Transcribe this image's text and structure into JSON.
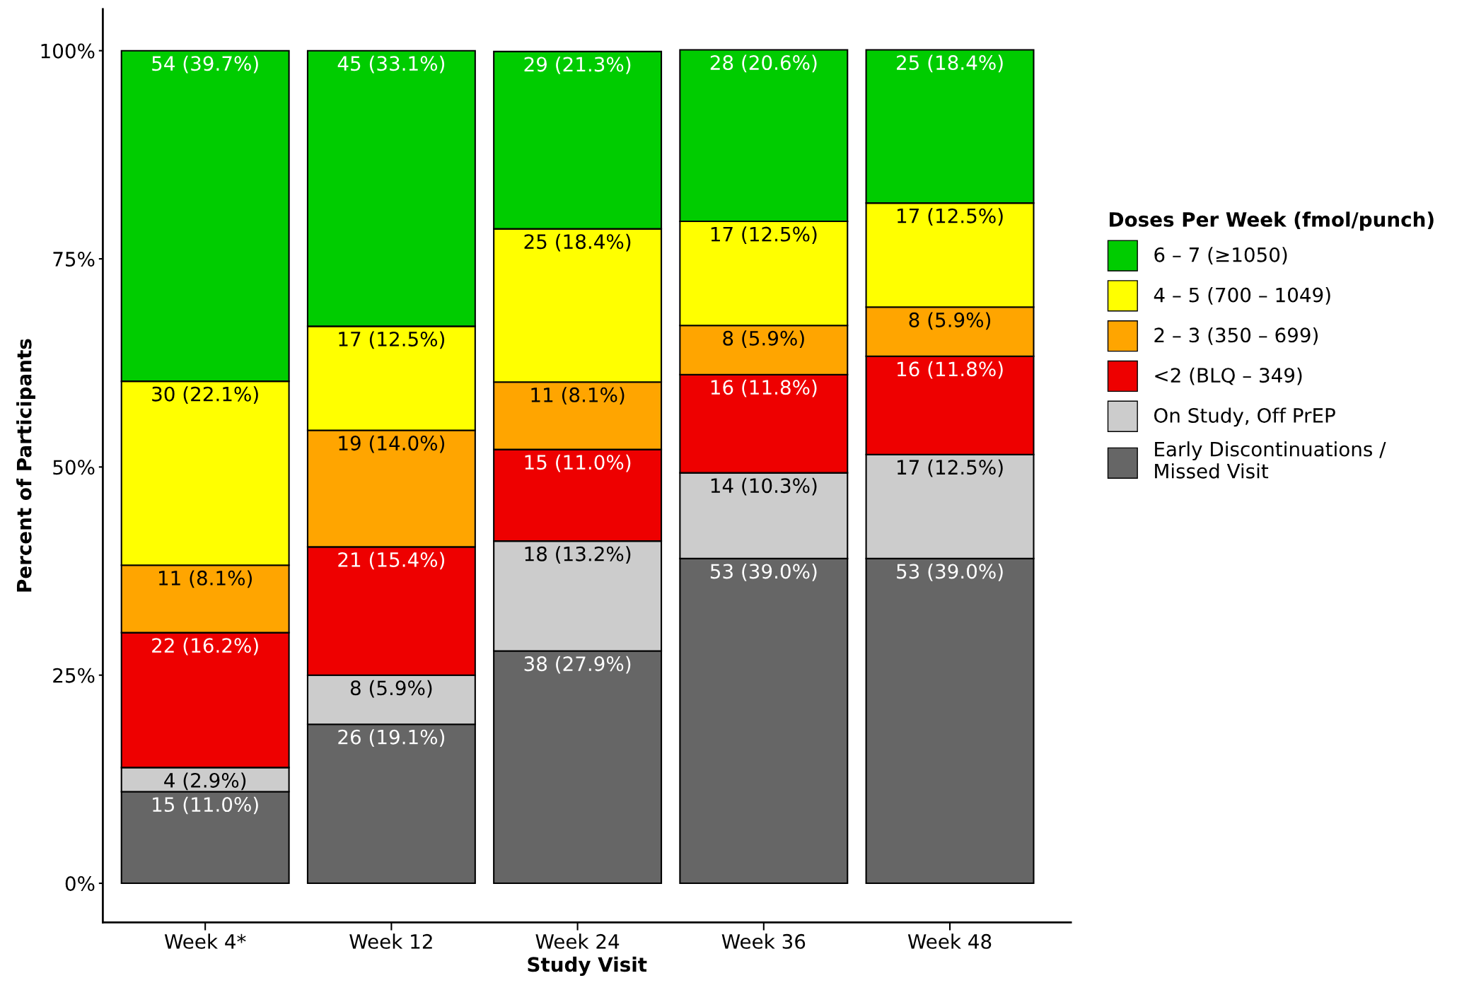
{
  "chart_data": {
    "type": "bar",
    "stacked": true,
    "xlabel": "Study Visit",
    "ylabel": "Percent of Participants",
    "legend_title": "Doses Per Week (fmol/punch)",
    "legend": "right",
    "grid": false,
    "categories": [
      "Week 4*",
      "Week 12",
      "Week 24",
      "Week 36",
      "Week 48"
    ],
    "ylim": [
      -4.7,
      105
    ],
    "yticks": [
      {
        "value": 0,
        "label": "0%"
      },
      {
        "value": 25,
        "label": "25%"
      },
      {
        "value": 50,
        "label": "50%"
      },
      {
        "value": 75,
        "label": "75%"
      },
      {
        "value": 100,
        "label": "100%"
      }
    ],
    "series": [
      {
        "name": "Early Discontinuations /\nMissed Visit",
        "color": "#666666",
        "values": [
          11.0,
          19.1,
          27.9,
          39.0,
          39.0
        ],
        "value_labels": [
          "15 (11.0%)",
          "26 (19.1%)",
          "38 (27.9%)",
          "53 (39.0%)",
          "53 (39.0%)"
        ]
      },
      {
        "name": "On Study, Off PrEP",
        "color": "#cccccc",
        "values": [
          2.9,
          5.9,
          13.2,
          10.3,
          12.5
        ],
        "value_labels": [
          "4 (2.9%)",
          "8 (5.9%)",
          "18 (13.2%)",
          "14 (10.3%)",
          "17 (12.5%)"
        ]
      },
      {
        "name": "<2 (BLQ – 349)",
        "color": "#ee0000",
        "values": [
          16.2,
          15.4,
          11.0,
          11.8,
          11.8
        ],
        "value_labels": [
          "22 (16.2%)",
          "21 (15.4%)",
          "15 (11.0%)",
          "16 (11.8%)",
          "16 (11.8%)"
        ]
      },
      {
        "name": "2 – 3 (350 – 699)",
        "color": "#ffa500",
        "values": [
          8.1,
          14.0,
          8.1,
          5.9,
          5.9
        ],
        "value_labels": [
          "11 (8.1%)",
          "19 (14.0%)",
          "11 (8.1%)",
          "8 (5.9%)",
          "8 (5.9%)"
        ]
      },
      {
        "name": "4 – 5 (700 – 1049)",
        "color": "#ffff00",
        "values": [
          22.1,
          12.5,
          18.4,
          12.5,
          12.5
        ],
        "value_labels": [
          "30 (22.1%)",
          "17 (12.5%)",
          "25 (18.4%)",
          "17 (12.5%)",
          "17 (12.5%)"
        ]
      },
      {
        "name": "6 – 7 (≥1050)",
        "color": "#00cc00",
        "values": [
          39.7,
          33.1,
          21.3,
          20.6,
          18.4
        ],
        "value_labels": [
          "54 (39.7%)",
          "45 (33.1%)",
          "29 (21.3%)",
          "28 (20.6%)",
          "25 (18.4%)"
        ]
      }
    ]
  }
}
